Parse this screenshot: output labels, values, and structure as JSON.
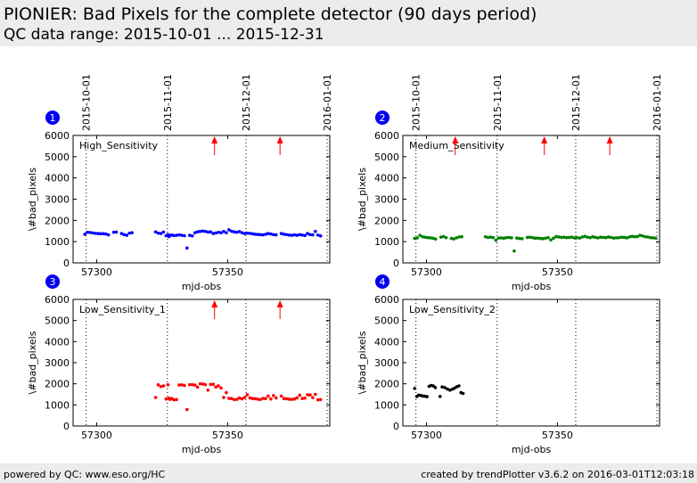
{
  "header": {
    "title": "PIONIER: Bad Pixels for the complete detector (90 days period)",
    "subtitle": "QC data range: 2015-10-01 ... 2015-12-31"
  },
  "footer": {
    "left": "powered by QC: www.eso.org/HC",
    "right": "created by trendPlotter v3.6.2 on 2016-03-01T12:03:18"
  },
  "colors": {
    "high": "#0000ff",
    "medium": "#008000",
    "low1": "#ff0000",
    "low2": "#000000",
    "badge": "#0000ee",
    "arrow": "#ff0000",
    "header_bg": "#ececec"
  },
  "chart_data": [
    {
      "type": "scatter",
      "panel_number": "1",
      "series_name": "High_Sensitivity",
      "color": "#0000ff",
      "xlabel": "mjd-obs",
      "ylabel": "\\#bad_pixels",
      "xlim": [
        57291,
        57389
      ],
      "ylim": [
        0,
        6000
      ],
      "yticks": [
        0,
        1000,
        2000,
        3000,
        4000,
        5000,
        6000
      ],
      "xticks": [
        57300,
        57350
      ],
      "date_markers": [
        {
          "mjd": 57296,
          "label": "2015-10-01"
        },
        {
          "mjd": 57327,
          "label": "2015-11-01"
        },
        {
          "mjd": 57357,
          "label": "2015-12-01"
        },
        {
          "mjd": 57388,
          "label": "2016-01-01"
        }
      ],
      "show_date_labels": true,
      "arrows": [
        57345,
        57370
      ],
      "x": [
        57295.5,
        57296.5,
        57297.5,
        57298.5,
        57299.5,
        57300.5,
        57301.5,
        57302.5,
        57303.5,
        57304.5,
        57306.5,
        57307.5,
        57309.5,
        57310.5,
        57311.5,
        57312.5,
        57313.5,
        57322.5,
        57323.5,
        57324.5,
        57325.5,
        57326.5,
        57327.2,
        57327.6,
        57328,
        57328.7,
        57329.5,
        57330.5,
        57331.5,
        57332.5,
        57333.5,
        57334.5,
        57335.5,
        57336.5,
        57337.5,
        57338.5,
        57339.5,
        57340.5,
        57341.5,
        57342.5,
        57343.5,
        57344.5,
        57345.5,
        57346.5,
        57347.5,
        57348.5,
        57349.5,
        57350.5,
        57351.5,
        57352.5,
        57353.5,
        57354.5,
        57355.5,
        57356.5,
        57357.5,
        57358.5,
        57359.5,
        57360.5,
        57361.5,
        57362.5,
        57363.5,
        57364.5,
        57365.5,
        57366.5,
        57367.5,
        57368.5,
        57370.5,
        57371.5,
        57372.5,
        57373.5,
        57374.5,
        57375.5,
        57376.5,
        57377.5,
        57378.5,
        57379.5,
        57380.5,
        57381.5,
        57382.5,
        57383.5,
        57384.5,
        57385.5
      ],
      "y": [
        1350,
        1440,
        1430,
        1410,
        1390,
        1380,
        1370,
        1375,
        1360,
        1320,
        1440,
        1450,
        1380,
        1330,
        1300,
        1400,
        1420,
        1460,
        1400,
        1380,
        1450,
        1280,
        1330,
        1240,
        1300,
        1310,
        1290,
        1300,
        1320,
        1300,
        1280,
        700,
        1300,
        1270,
        1420,
        1460,
        1480,
        1500,
        1480,
        1450,
        1460,
        1380,
        1410,
        1440,
        1420,
        1480,
        1420,
        1560,
        1490,
        1460,
        1440,
        1470,
        1420,
        1380,
        1400,
        1390,
        1370,
        1350,
        1340,
        1330,
        1320,
        1350,
        1380,
        1360,
        1330,
        1320,
        1380,
        1350,
        1330,
        1310,
        1300,
        1320,
        1300,
        1330,
        1310,
        1290,
        1380,
        1330,
        1320,
        1480,
        1310,
        1270
      ]
    },
    {
      "type": "scatter",
      "panel_number": "2",
      "series_name": "Medium_Sensitivity",
      "color": "#008000",
      "xlabel": "mjd-obs",
      "ylabel": "\\#bad_pixels",
      "xlim": [
        57291,
        57389
      ],
      "ylim": [
        0,
        6000
      ],
      "yticks": [
        0,
        1000,
        2000,
        3000,
        4000,
        5000,
        6000
      ],
      "xticks": [
        57300,
        57350
      ],
      "date_markers": [
        {
          "mjd": 57296,
          "label": "2015-10-01"
        },
        {
          "mjd": 57327,
          "label": "2015-11-01"
        },
        {
          "mjd": 57357,
          "label": "2015-12-01"
        },
        {
          "mjd": 57388,
          "label": "2016-01-01"
        }
      ],
      "show_date_labels": true,
      "arrows": [
        57311,
        57345,
        57370
      ],
      "x": [
        57295.5,
        57296.5,
        57297.5,
        57298.5,
        57299.5,
        57300.5,
        57301.5,
        57302.5,
        57303.5,
        57305.5,
        57306.5,
        57307.5,
        57309.5,
        57310.5,
        57311.5,
        57312.5,
        57313.5,
        57322.5,
        57323.5,
        57324.5,
        57325.5,
        57326.5,
        57327.5,
        57328.5,
        57329.5,
        57330.5,
        57331.5,
        57332.5,
        57333.5,
        57334.5,
        57335.5,
        57336.5,
        57338.5,
        57339.5,
        57340.5,
        57341.5,
        57342.5,
        57343.5,
        57344.5,
        57345.5,
        57346.5,
        57347.5,
        57348.5,
        57349.5,
        57350.5,
        57351.5,
        57352.5,
        57353.5,
        57354.5,
        57355.5,
        57356.5,
        57357.5,
        57358.5,
        57359.5,
        57360.5,
        57361.5,
        57362.5,
        57363.5,
        57364.5,
        57365.5,
        57366.5,
        57367.5,
        57368.5,
        57369.5,
        57370.5,
        57371.5,
        57372.5,
        57373.5,
        57374.5,
        57375.5,
        57376.5,
        57377.5,
        57378.5,
        57379.5,
        57380.5,
        57381.5,
        57382.5,
        57383.5,
        57384.5,
        57385.5,
        57386.5,
        57387.5
      ],
      "y": [
        1150,
        1180,
        1300,
        1230,
        1210,
        1190,
        1180,
        1160,
        1120,
        1210,
        1240,
        1190,
        1150,
        1130,
        1180,
        1220,
        1230,
        1230,
        1200,
        1210,
        1190,
        1060,
        1170,
        1180,
        1160,
        1190,
        1200,
        1180,
        560,
        1170,
        1150,
        1140,
        1200,
        1210,
        1190,
        1160,
        1170,
        1150,
        1140,
        1170,
        1190,
        1080,
        1160,
        1240,
        1220,
        1200,
        1210,
        1190,
        1200,
        1210,
        1180,
        1190,
        1170,
        1220,
        1250,
        1210,
        1190,
        1230,
        1200,
        1180,
        1210,
        1200,
        1190,
        1220,
        1200,
        1170,
        1180,
        1190,
        1210,
        1200,
        1180,
        1220,
        1250,
        1230,
        1240,
        1300,
        1270,
        1230,
        1220,
        1190,
        1180,
        1170
      ]
    },
    {
      "type": "scatter",
      "panel_number": "3",
      "series_name": "Low_Sensitivity_1",
      "color": "#ff0000",
      "xlabel": "mjd-obs",
      "ylabel": "\\#bad_pixels",
      "xlim": [
        57291,
        57389
      ],
      "ylim": [
        0,
        6000
      ],
      "yticks": [
        0,
        1000,
        2000,
        3000,
        4000,
        5000,
        6000
      ],
      "xticks": [
        57300,
        57350
      ],
      "date_markers": [
        {
          "mjd": 57296,
          "label": "2015-10-01"
        },
        {
          "mjd": 57327,
          "label": "2015-11-01"
        },
        {
          "mjd": 57357,
          "label": "2015-12-01"
        },
        {
          "mjd": 57388,
          "label": "2016-01-01"
        }
      ],
      "show_date_labels": false,
      "arrows": [
        57345,
        57370
      ],
      "x": [
        57322.5,
        57323.5,
        57324.5,
        57325.5,
        57326.5,
        57327.2,
        57327.6,
        57328,
        57328.7,
        57329.5,
        57330.5,
        57331.5,
        57332.5,
        57333.5,
        57334.5,
        57335.5,
        57336.5,
        57337.5,
        57338.5,
        57339.5,
        57340.5,
        57341.5,
        57342.5,
        57343.5,
        57344.5,
        57345.5,
        57346.5,
        57347.5,
        57348.5,
        57349.5,
        57350.5,
        57351.5,
        57352.5,
        57353.5,
        57354.5,
        57355.5,
        57356.5,
        57357.5,
        57358.5,
        57359.5,
        57360.5,
        57361.5,
        57362.5,
        57363.5,
        57364.5,
        57365.5,
        57366.5,
        57367.5,
        57368.5,
        57370.5,
        57371.5,
        57372.5,
        57373.5,
        57374.5,
        57375.5,
        57376.5,
        57377.5,
        57378.5,
        57379.5,
        57380.5,
        57381.5,
        57382.5,
        57383.5,
        57384.5,
        57385.5
      ],
      "y": [
        1350,
        1950,
        1870,
        1900,
        1280,
        1950,
        1320,
        1260,
        1300,
        1240,
        1250,
        1940,
        1950,
        1920,
        780,
        1960,
        1960,
        1940,
        1840,
        2000,
        1990,
        1960,
        1700,
        1970,
        1980,
        1850,
        1900,
        1800,
        1350,
        1580,
        1310,
        1300,
        1250,
        1260,
        1330,
        1290,
        1350,
        1480,
        1330,
        1300,
        1290,
        1270,
        1250,
        1310,
        1300,
        1420,
        1280,
        1440,
        1330,
        1420,
        1300,
        1290,
        1270,
        1260,
        1280,
        1330,
        1460,
        1300,
        1320,
        1480,
        1470,
        1340,
        1500,
        1240,
        1250
      ]
    },
    {
      "type": "scatter",
      "panel_number": "4",
      "series_name": "Low_Sensitivity_2",
      "color": "#000000",
      "xlabel": "mjd-obs",
      "ylabel": "\\#bad_pixels",
      "xlim": [
        57291,
        57389
      ],
      "ylim": [
        0,
        6000
      ],
      "yticks": [
        0,
        1000,
        2000,
        3000,
        4000,
        5000,
        6000
      ],
      "xticks": [
        57300,
        57350
      ],
      "date_markers": [
        {
          "mjd": 57296,
          "label": "2015-10-01"
        },
        {
          "mjd": 57327,
          "label": "2015-11-01"
        },
        {
          "mjd": 57357,
          "label": "2015-12-01"
        },
        {
          "mjd": 57388,
          "label": "2016-01-01"
        }
      ],
      "show_date_labels": false,
      "arrows": [],
      "x": [
        57295.5,
        57296.3,
        57297,
        57297.8,
        57298.6,
        57299.4,
        57300.2,
        57301,
        57301.8,
        57302.6,
        57303.4,
        57305.2,
        57306,
        57307,
        57308,
        57309,
        57310,
        57310.8,
        57311.6,
        57312.4,
        57313.2,
        57314
      ],
      "y": [
        1780,
        1400,
        1460,
        1450,
        1420,
        1410,
        1390,
        1880,
        1920,
        1900,
        1820,
        1400,
        1850,
        1820,
        1750,
        1700,
        1750,
        1800,
        1860,
        1900,
        1580,
        1540
      ]
    }
  ]
}
